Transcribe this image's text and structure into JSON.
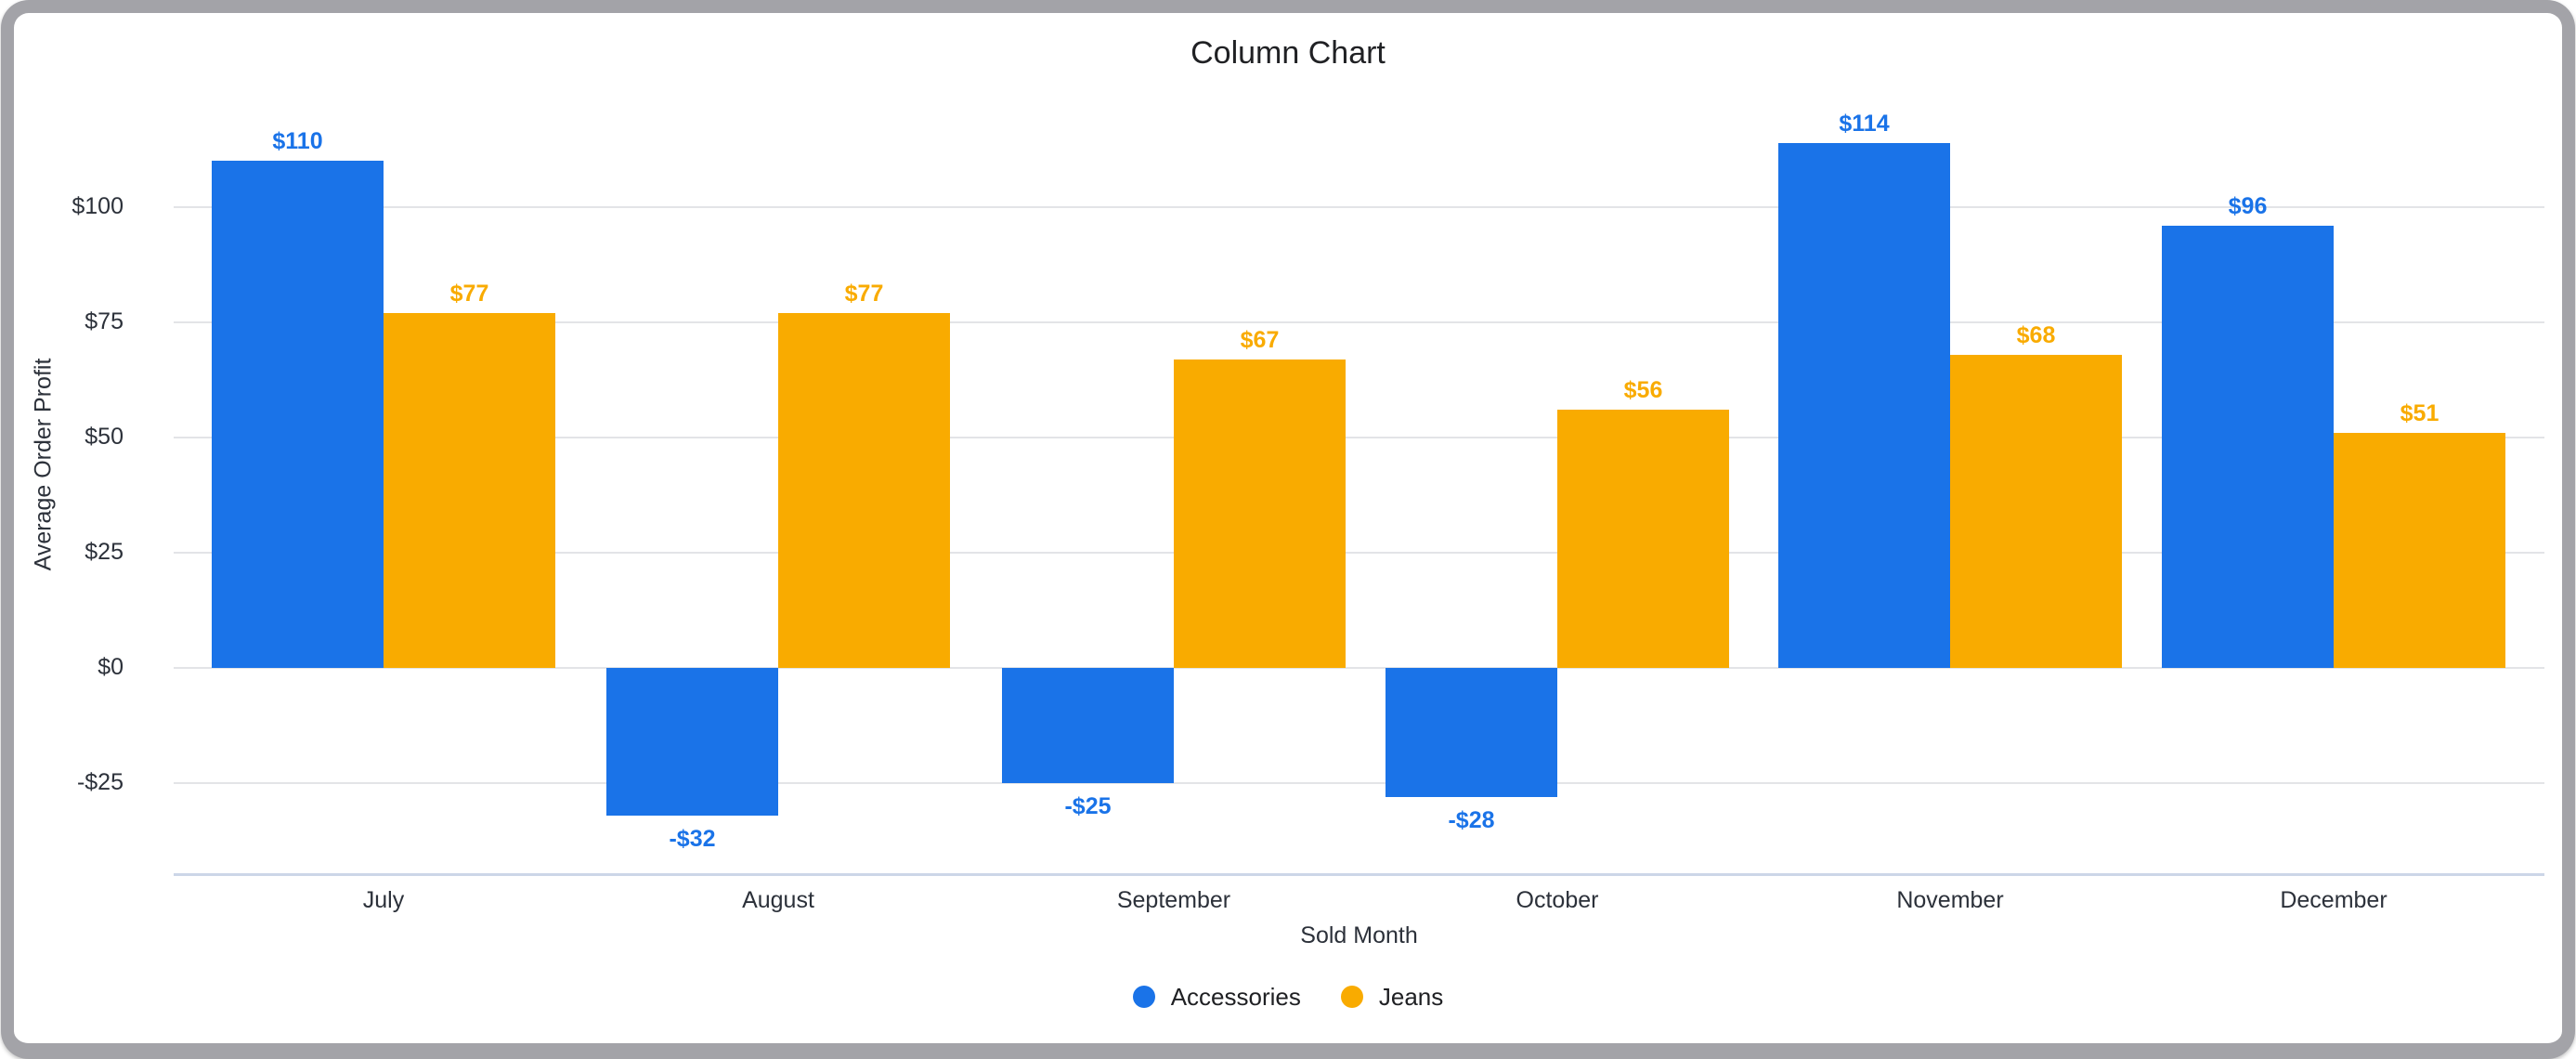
{
  "window": {
    "frame_color": "#a3a3a8",
    "page_background": "#ffffff"
  },
  "chart_style": {
    "gridline_color": "#e3e4e7",
    "axis_line_color": "#ccd6e8",
    "axis_text_color": "#2c313a",
    "title_color": "#202124"
  },
  "chart_data": {
    "type": "bar",
    "title": "Column Chart",
    "xlabel": "Sold Month",
    "ylabel": "Average Order Profit",
    "categories": [
      "July",
      "August",
      "September",
      "October",
      "November",
      "December"
    ],
    "series": [
      {
        "name": "Accessories",
        "color": "#1a73e8",
        "values": [
          110,
          -32,
          -25,
          -28,
          114,
          96
        ],
        "labels": [
          "$110",
          "-$32",
          "-$25",
          "-$28",
          "$114",
          "$96"
        ]
      },
      {
        "name": "Jeans",
        "color": "#f9ab00",
        "values": [
          77,
          77,
          67,
          56,
          68,
          51
        ],
        "labels": [
          "$77",
          "$77",
          "$67",
          "$56",
          "$68",
          "$51"
        ]
      }
    ],
    "yticks": [
      {
        "value": 100,
        "label": "$100"
      },
      {
        "value": 75,
        "label": "$75"
      },
      {
        "value": 50,
        "label": "$50"
      },
      {
        "value": 25,
        "label": "$25"
      },
      {
        "value": 0,
        "label": "$0"
      },
      {
        "value": -25,
        "label": "-$25"
      }
    ],
    "ylim": [
      -44.8,
      127.8
    ],
    "grid": true,
    "legend_position": "bottom"
  }
}
